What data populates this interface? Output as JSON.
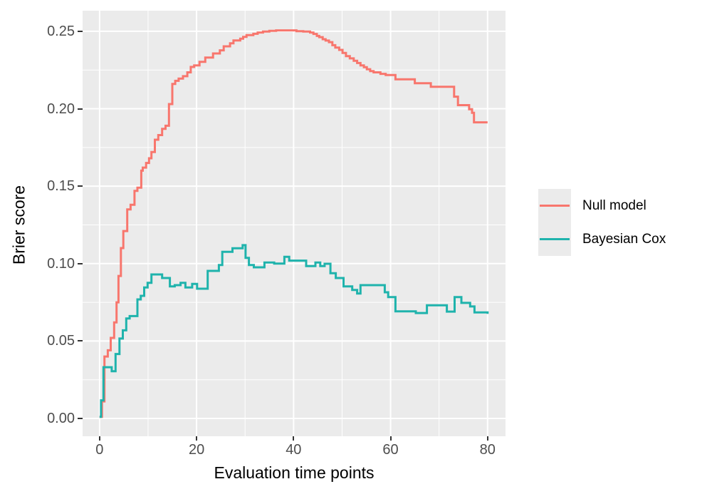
{
  "chart_data": {
    "type": "line",
    "line_style": "step-after",
    "title": "",
    "xlabel": "Evaluation time points",
    "ylabel": "Brier score",
    "xlim": [
      -3.5,
      83.7
    ],
    "ylim": [
      -0.0115,
      0.2633
    ],
    "x_ticks": [
      0,
      20,
      40,
      60,
      80
    ],
    "x_tick_labels": [
      "0",
      "20",
      "40",
      "60",
      "80"
    ],
    "x_minor_ticks": [
      10,
      30,
      50,
      70
    ],
    "y_ticks": [
      0,
      0.05,
      0.1,
      0.15,
      0.2,
      0.25
    ],
    "y_tick_labels": [
      "0.00",
      "0.05",
      "0.10",
      "0.15",
      "0.20",
      "0.25"
    ],
    "y_minor_ticks": [
      0.025,
      0.075,
      0.125,
      0.175,
      0.225
    ],
    "grid": "white major+minor on gray panel",
    "panel_bg": "#ebebeb",
    "grid_color": "#ffffff",
    "axis_text_color": "#4d4d4d",
    "legend_position": "right",
    "series": [
      {
        "name": "Null model",
        "color": "#F8766D",
        "points": [
          [
            0,
            0.001
          ],
          [
            0.5,
            0.011
          ],
          [
            1,
            0.04
          ],
          [
            1.7,
            0.044
          ],
          [
            2.3,
            0.052
          ],
          [
            3,
            0.062
          ],
          [
            3.5,
            0.075
          ],
          [
            3.9,
            0.092
          ],
          [
            4.4,
            0.11
          ],
          [
            4.9,
            0.121
          ],
          [
            5.7,
            0.135
          ],
          [
            6.4,
            0.138
          ],
          [
            7.2,
            0.147
          ],
          [
            7.8,
            0.149
          ],
          [
            8.6,
            0.16
          ],
          [
            8.9,
            0.162
          ],
          [
            9.6,
            0.165
          ],
          [
            10.2,
            0.168
          ],
          [
            10.7,
            0.172
          ],
          [
            11.4,
            0.18
          ],
          [
            12.1,
            0.183
          ],
          [
            12.9,
            0.187
          ],
          [
            13.6,
            0.189
          ],
          [
            14.3,
            0.203
          ],
          [
            15,
            0.216
          ],
          [
            15.6,
            0.218
          ],
          [
            16.3,
            0.2195
          ],
          [
            17.2,
            0.221
          ],
          [
            18.1,
            0.2235
          ],
          [
            18.8,
            0.227
          ],
          [
            19.5,
            0.228
          ],
          [
            20.6,
            0.2303
          ],
          [
            21.8,
            0.233
          ],
          [
            23.4,
            0.2357
          ],
          [
            24.8,
            0.2377
          ],
          [
            25.6,
            0.2403
          ],
          [
            26.9,
            0.2422
          ],
          [
            27.6,
            0.2441
          ],
          [
            29,
            0.2452
          ],
          [
            29.6,
            0.2464
          ],
          [
            30.3,
            0.2475
          ],
          [
            31.7,
            0.2484
          ],
          [
            32.6,
            0.2492
          ],
          [
            33.7,
            0.2498
          ],
          [
            35,
            0.2503
          ],
          [
            36.4,
            0.2506
          ],
          [
            40.6,
            0.2501
          ],
          [
            42,
            0.2498
          ],
          [
            43.4,
            0.2492
          ],
          [
            44.1,
            0.2483
          ],
          [
            44.8,
            0.247
          ],
          [
            45.3,
            0.2462
          ],
          [
            46,
            0.2449
          ],
          [
            46.6,
            0.244
          ],
          [
            47.3,
            0.243
          ],
          [
            48,
            0.241
          ],
          [
            48.6,
            0.2395
          ],
          [
            49.4,
            0.238
          ],
          [
            50.1,
            0.236
          ],
          [
            50.8,
            0.234
          ],
          [
            51.6,
            0.2325
          ],
          [
            52.4,
            0.231
          ],
          [
            53.1,
            0.2295
          ],
          [
            53.8,
            0.228
          ],
          [
            54.5,
            0.2268
          ],
          [
            55.1,
            0.2255
          ],
          [
            55.8,
            0.2243
          ],
          [
            56.5,
            0.2235
          ],
          [
            57.9,
            0.2225
          ],
          [
            59,
            0.2218
          ],
          [
            61,
            0.219
          ],
          [
            65,
            0.2165
          ],
          [
            68.3,
            0.2142
          ],
          [
            73.1,
            0.2078
          ],
          [
            73.9,
            0.2023
          ],
          [
            76.2,
            0.1997
          ],
          [
            76.8,
            0.1974
          ],
          [
            77.2,
            0.1912
          ],
          [
            80,
            0.1912
          ]
        ]
      },
      {
        "name": "Bayesian Cox",
        "color": "#1FB3AC",
        "points": [
          [
            0,
            0.001
          ],
          [
            0.3,
            0.0117
          ],
          [
            0.8,
            0.0331
          ],
          [
            2.5,
            0.0305
          ],
          [
            3.3,
            0.0416
          ],
          [
            4.1,
            0.0516
          ],
          [
            4.8,
            0.0569
          ],
          [
            5.5,
            0.0646
          ],
          [
            6.2,
            0.0661
          ],
          [
            7.8,
            0.0769
          ],
          [
            8.5,
            0.0792
          ],
          [
            9.2,
            0.0846
          ],
          [
            9.9,
            0.0876
          ],
          [
            10.7,
            0.093
          ],
          [
            12.9,
            0.0907
          ],
          [
            14.5,
            0.0853
          ],
          [
            15.5,
            0.0861
          ],
          [
            16.7,
            0.0876
          ],
          [
            17.7,
            0.0846
          ],
          [
            19.1,
            0.0869
          ],
          [
            20.1,
            0.0838
          ],
          [
            22.3,
            0.0953
          ],
          [
            24.6,
            0.0991
          ],
          [
            25.3,
            0.1076
          ],
          [
            27.4,
            0.1099
          ],
          [
            29.5,
            0.1119
          ],
          [
            30.1,
            0.1037
          ],
          [
            30.8,
            0.0991
          ],
          [
            31.8,
            0.0976
          ],
          [
            34,
            0.1007
          ],
          [
            36,
            0.1
          ],
          [
            38.1,
            0.1044
          ],
          [
            39.1,
            0.1019
          ],
          [
            42.6,
            0.0984
          ],
          [
            44.5,
            0.1007
          ],
          [
            45.5,
            0.0984
          ],
          [
            46.4,
            0.0999
          ],
          [
            47.6,
            0.0938
          ],
          [
            48.7,
            0.0907
          ],
          [
            50.3,
            0.0853
          ],
          [
            52.1,
            0.083
          ],
          [
            53.1,
            0.0807
          ],
          [
            53.8,
            0.0861
          ],
          [
            58.8,
            0.0815
          ],
          [
            59.5,
            0.0784
          ],
          [
            61,
            0.0692
          ],
          [
            65.2,
            0.0681
          ],
          [
            67.5,
            0.0731
          ],
          [
            71.6,
            0.069
          ],
          [
            73.2,
            0.0784
          ],
          [
            74.6,
            0.0746
          ],
          [
            76.4,
            0.0723
          ],
          [
            77.3,
            0.0685
          ],
          [
            80,
            0.0676
          ]
        ]
      }
    ]
  },
  "axes": {
    "x_title": "Evaluation time points",
    "y_title": "Brier score"
  },
  "legend": {
    "items": [
      {
        "label": "Null model",
        "color": "#F8766D"
      },
      {
        "label": "Bayesian Cox",
        "color": "#1FB3AC"
      }
    ]
  }
}
